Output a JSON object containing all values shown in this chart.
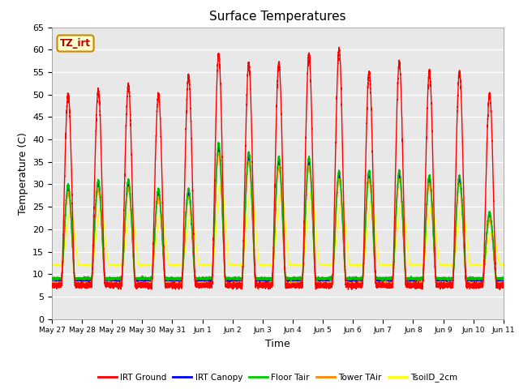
{
  "title": "Surface Temperatures",
  "xlabel": "Time",
  "ylabel": "Temperature (C)",
  "ylim": [
    0,
    65
  ],
  "yticks": [
    0,
    5,
    10,
    15,
    20,
    25,
    30,
    35,
    40,
    45,
    50,
    55,
    60,
    65
  ],
  "plot_bg_color": "#e8e8e8",
  "tz_label": "TZ_irt",
  "legend_entries": [
    "IRT Ground",
    "IRT Canopy",
    "Floor Tair",
    "Tower TAir",
    "TsoilD_2cm"
  ],
  "legend_colors": [
    "#ff0000",
    "#0000ff",
    "#00cc00",
    "#ff8800",
    "#ffff00"
  ],
  "line_colors": {
    "irt_ground": "#ff0000",
    "irt_canopy": "#0000cc",
    "floor_tair": "#00bb00",
    "tower_tair": "#ff8800",
    "tsoild_2cm": "#ffff00"
  },
  "start_day": 147,
  "end_day": 162,
  "n_points": 7200,
  "tick_labels": [
    "May 27",
    "May 28",
    "May 29",
    "May 30",
    "May 31",
    "Jun 1",
    "Jun 2",
    "Jun 3",
    "Jun 4",
    "Jun 5",
    "Jun 6",
    "Jun 7",
    "Jun 8",
    "Jun 9",
    "Jun 10",
    "Jun 11"
  ],
  "tick_positions": [
    147,
    148,
    149,
    150,
    151,
    152,
    153,
    154,
    155,
    156,
    157,
    158,
    159,
    160,
    161,
    162
  ],
  "peak_ground": [
    50,
    51,
    52,
    50,
    54,
    59,
    57,
    57,
    59,
    60,
    55,
    57,
    55,
    55,
    50,
    50
  ],
  "peak_canopy": [
    29,
    30,
    30,
    28,
    28,
    38,
    36,
    35,
    35,
    32,
    32,
    32,
    31,
    31,
    23,
    23
  ],
  "base_night": 7.5,
  "base_canopy_night": 8.5,
  "phase_peak": 0.54,
  "phase_tsoil": 0.62,
  "sigma_ground": 0.18,
  "sigma_canopy": 0.18,
  "sigma_tsoil": 0.22
}
